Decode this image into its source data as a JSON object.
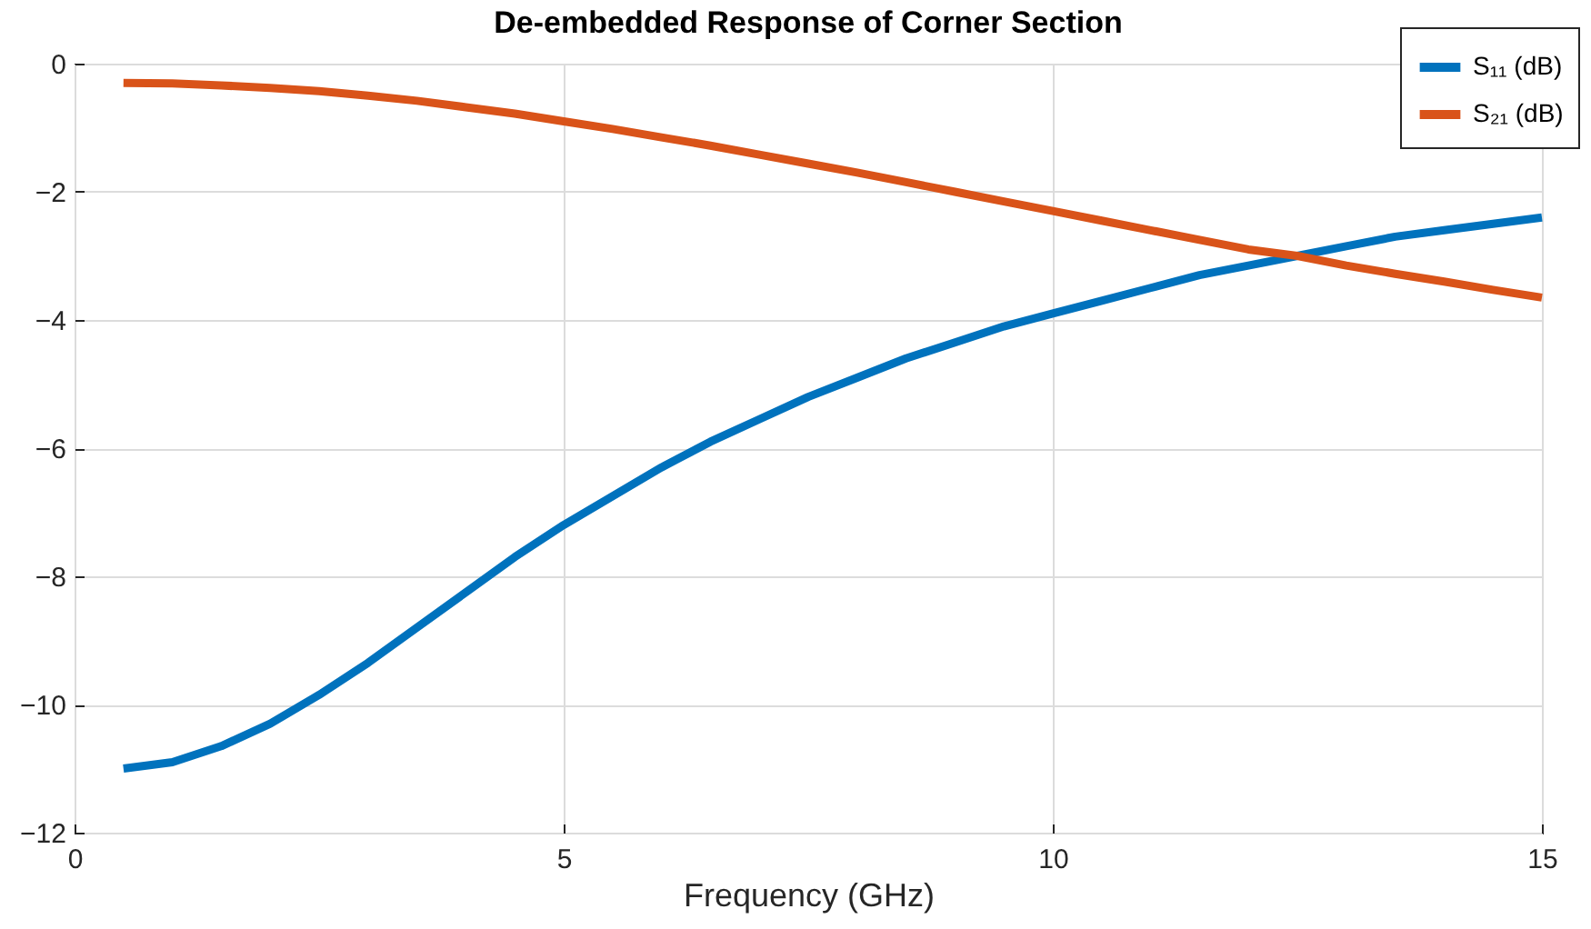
{
  "chart_data": {
    "type": "line",
    "title": "De-embedded Response of Corner Section",
    "xlabel": "Frequency (GHz)",
    "xlim": [
      0,
      15
    ],
    "xticks": [
      0,
      5,
      10,
      15
    ],
    "ylim": [
      -12,
      0
    ],
    "yticks": [
      -12,
      -10,
      -8,
      -6,
      -4,
      -2,
      0
    ],
    "grid": true,
    "legend": "top right",
    "x": [
      0.5,
      1,
      1.5,
      2,
      2.5,
      3,
      3.5,
      4,
      4.5,
      5,
      5.5,
      6,
      6.5,
      7,
      7.5,
      8,
      8.5,
      9,
      9.5,
      10,
      10.5,
      11,
      11.5,
      12,
      12.5,
      13,
      13.5,
      14,
      14.5,
      15
    ],
    "series": [
      {
        "name": "S₁₁ (dB)",
        "color": "#0072bd",
        "values": [
          -11.0,
          -10.9,
          -10.65,
          -10.3,
          -9.85,
          -9.35,
          -8.8,
          -8.25,
          -7.7,
          -7.2,
          -6.75,
          -6.3,
          -5.9,
          -5.55,
          -5.2,
          -4.9,
          -4.6,
          -4.35,
          -4.1,
          -3.9,
          -3.7,
          -3.5,
          -3.3,
          -3.15,
          -3.0,
          -2.85,
          -2.7,
          -2.6,
          -2.5,
          -2.4
        ]
      },
      {
        "name": "S₂₁ (dB)",
        "color": "#d95319",
        "values": [
          -0.3,
          -0.31,
          -0.34,
          -0.38,
          -0.43,
          -0.5,
          -0.58,
          -0.68,
          -0.78,
          -0.9,
          -1.02,
          -1.15,
          -1.28,
          -1.42,
          -1.56,
          -1.7,
          -1.85,
          -2.0,
          -2.15,
          -2.3,
          -2.45,
          -2.6,
          -2.75,
          -2.9,
          -3.0,
          -3.15,
          -3.28,
          -3.4,
          -3.53,
          -3.65
        ]
      }
    ]
  }
}
